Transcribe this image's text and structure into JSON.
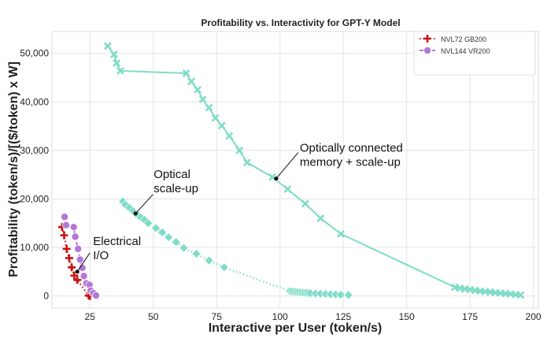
{
  "chart_data": {
    "type": "scatter",
    "title": "Profitability vs. Interactivity for GPT-Y Model",
    "xlabel": "Interactive per User (token/s)",
    "ylabel": "Profitability (token/s)/[($/token) x W]",
    "xlim": [
      10,
      202
    ],
    "ylim": [
      -2500,
      54500
    ],
    "xticks": [
      25,
      50,
      75,
      100,
      125,
      150,
      175,
      200
    ],
    "yticks": [
      0,
      10000,
      20000,
      30000,
      40000,
      50000
    ],
    "ytick_labels": [
      "0",
      "10,000",
      "20,000",
      "30,000",
      "40,000",
      "50,000"
    ],
    "grid": true,
    "legend_position": "top-right",
    "series": [
      {
        "name": "NVL72 GB200",
        "color": "#cc1111",
        "marker": "plus",
        "line": "dotted",
        "points": [
          [
            14,
            14200
          ],
          [
            14.8,
            12500
          ],
          [
            15.8,
            9700
          ],
          [
            16.8,
            7800
          ],
          [
            17.8,
            5900
          ],
          [
            18.8,
            4200
          ],
          [
            20,
            3300
          ],
          [
            24.5,
            100
          ],
          [
            25,
            0
          ]
        ]
      },
      {
        "name": "NVL144 VR200",
        "color": "#b377d6",
        "marker": "circle",
        "line": "dashed",
        "points": [
          [
            15,
            16300
          ],
          [
            15.6,
            14600
          ],
          [
            18.6,
            14200
          ],
          [
            19.2,
            12200
          ],
          [
            20.3,
            9700
          ],
          [
            21.1,
            7500
          ],
          [
            22,
            5800
          ],
          [
            22.6,
            4100
          ],
          [
            23.6,
            2600
          ],
          [
            24.8,
            2300
          ],
          [
            25.3,
            1100
          ],
          [
            26.3,
            600
          ],
          [
            27.4,
            100
          ]
        ]
      },
      {
        "name": "",
        "color": "#7fdcc8",
        "marker": "diamond",
        "line": "dotted",
        "points": [
          [
            38,
            19500
          ],
          [
            39,
            18800
          ],
          [
            40.5,
            18200
          ],
          [
            42,
            17500
          ],
          [
            43.5,
            16800
          ],
          [
            45,
            16200
          ],
          [
            46.5,
            15700
          ],
          [
            48,
            15000
          ],
          [
            51,
            14000
          ],
          [
            53.5,
            13100
          ],
          [
            56,
            12100
          ],
          [
            59,
            11100
          ],
          [
            62,
            9900
          ],
          [
            67,
            8700
          ],
          [
            72,
            7300
          ],
          [
            78,
            5900
          ],
          [
            104,
            1000
          ],
          [
            105,
            900
          ],
          [
            106,
            850
          ],
          [
            107,
            800
          ],
          [
            108,
            750
          ],
          [
            109,
            700
          ],
          [
            110,
            650
          ],
          [
            111,
            600
          ],
          [
            112,
            550
          ],
          [
            114,
            500
          ],
          [
            116,
            450
          ],
          [
            118,
            400
          ],
          [
            120,
            350
          ],
          [
            122,
            300
          ],
          [
            124,
            250
          ],
          [
            127,
            200
          ]
        ]
      },
      {
        "name": "",
        "color": "#7fdcc8",
        "marker": "x",
        "line": "solid",
        "points": [
          [
            32,
            51500
          ],
          [
            34.5,
            49800
          ],
          [
            35.5,
            48000
          ],
          [
            37,
            46400
          ],
          [
            63,
            45900
          ],
          [
            65,
            44200
          ],
          [
            67.5,
            42500
          ],
          [
            69.5,
            40500
          ],
          [
            72,
            38800
          ],
          [
            74.5,
            36700
          ],
          [
            77,
            35100
          ],
          [
            80,
            33000
          ],
          [
            84,
            30000
          ],
          [
            87,
            27500
          ],
          [
            97,
            24500
          ],
          [
            103,
            22000
          ],
          [
            110,
            19000
          ],
          [
            116,
            16000
          ],
          [
            124,
            12800
          ],
          [
            169,
            1800
          ],
          [
            171,
            1600
          ],
          [
            173,
            1450
          ],
          [
            175,
            1300
          ],
          [
            177,
            1150
          ],
          [
            179,
            1000
          ],
          [
            181,
            900
          ],
          [
            183,
            800
          ],
          [
            185,
            700
          ],
          [
            187,
            600
          ],
          [
            189,
            500
          ],
          [
            191,
            400
          ],
          [
            193,
            300
          ],
          [
            195,
            200
          ]
        ]
      }
    ],
    "annotations": [
      {
        "lines": [
          "Optically connected",
          "memory + scale-up"
        ],
        "x": 98.5,
        "y": 24200
      },
      {
        "lines": [
          "Optical",
          "scale-up"
        ],
        "x": 43,
        "y": 17000
      },
      {
        "lines": [
          "Electrical",
          "I/O"
        ],
        "x": 20,
        "y": 5000
      }
    ]
  }
}
